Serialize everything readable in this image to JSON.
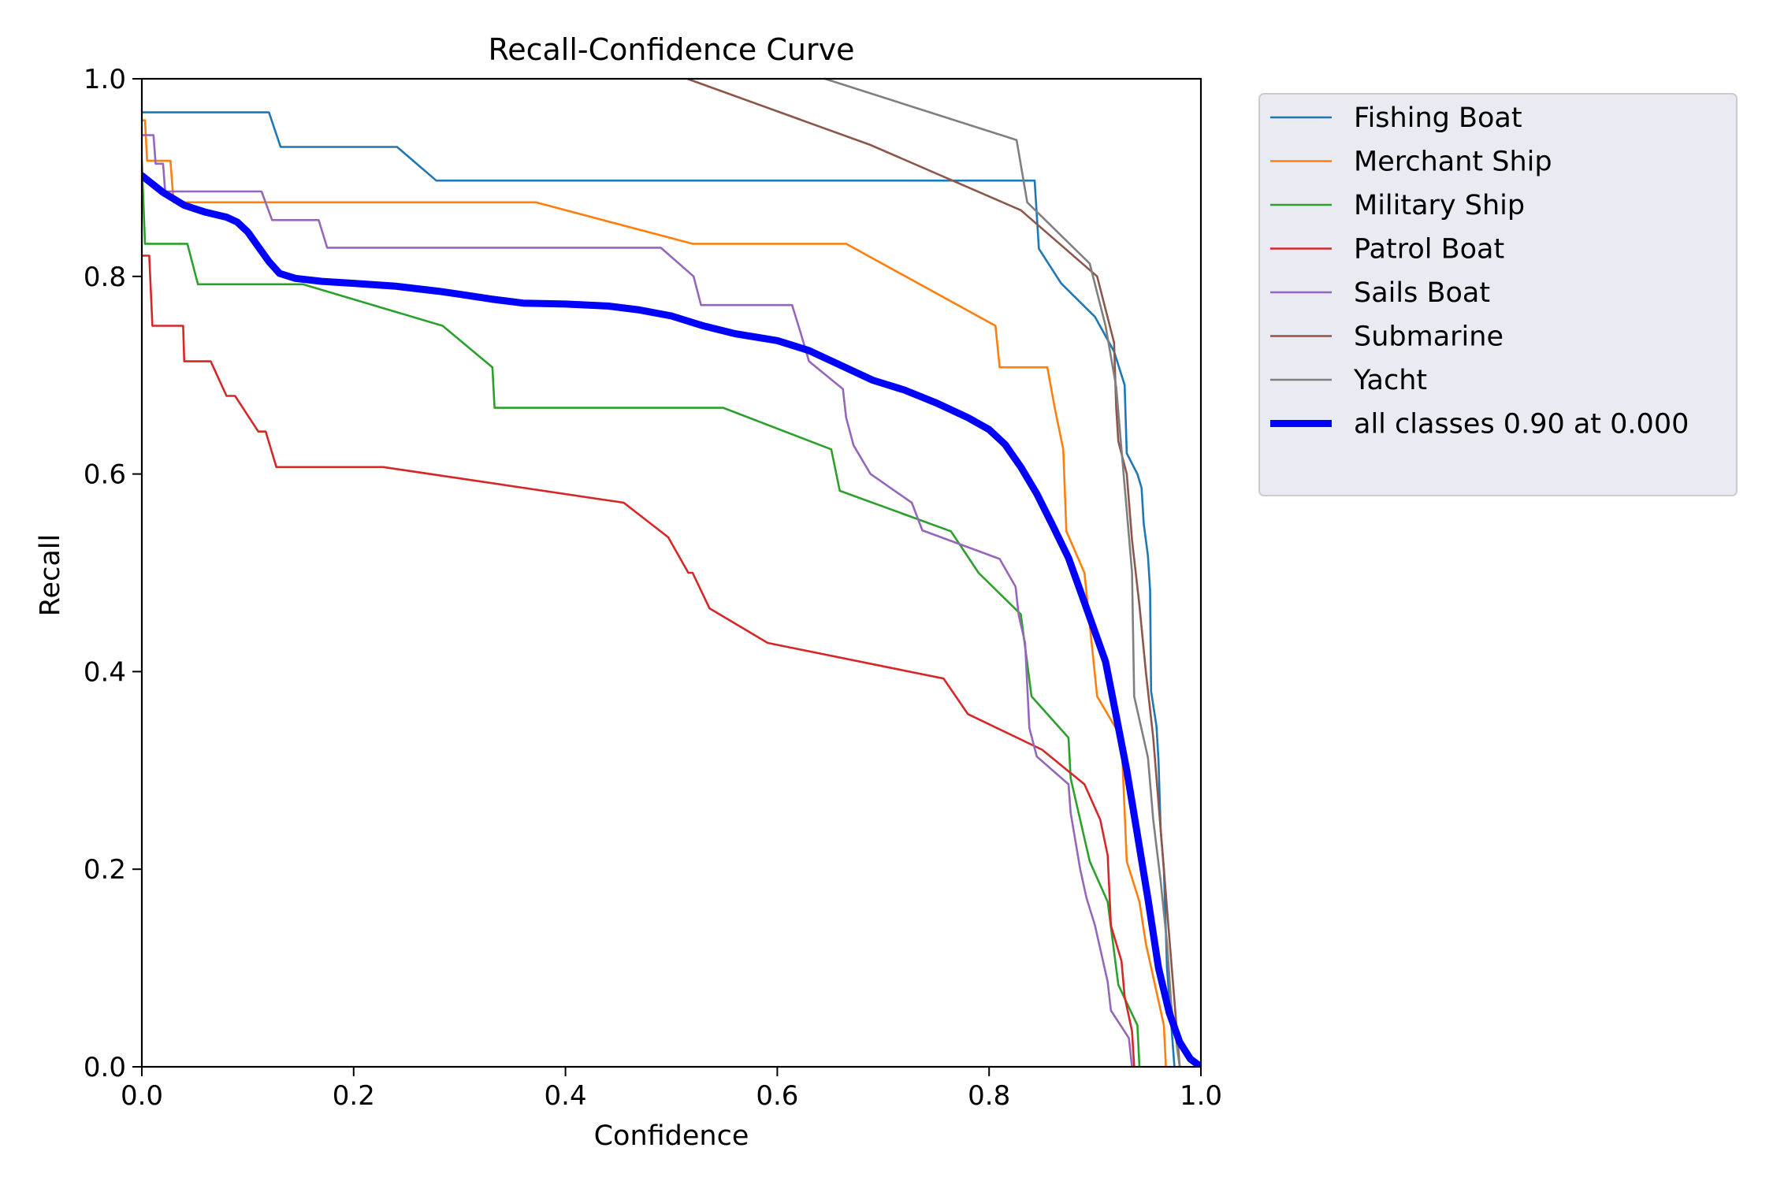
{
  "chart_data": {
    "type": "line",
    "title": "Recall-Confidence Curve",
    "xlabel": "Confidence",
    "ylabel": "Recall",
    "xlim": [
      0,
      1
    ],
    "ylim": [
      0,
      1
    ],
    "xticks": [
      "0.0",
      "0.2",
      "0.4",
      "0.6",
      "0.8",
      "1.0"
    ],
    "yticks": [
      "0.0",
      "0.2",
      "0.4",
      "0.6",
      "0.8",
      "1.0"
    ],
    "grid": false,
    "legend_position": "outside-top-right",
    "series": [
      {
        "name": "Fishing Boat",
        "color": "#1f77b4",
        "points": [
          [
            0,
            0.966
          ],
          [
            0.12,
            0.966
          ],
          [
            0.131,
            0.931
          ],
          [
            0.241,
            0.931
          ],
          [
            0.278,
            0.897
          ],
          [
            0.843,
            0.897
          ],
          [
            0.847,
            0.828
          ],
          [
            0.868,
            0.793
          ],
          [
            0.9,
            0.759
          ],
          [
            0.918,
            0.724
          ],
          [
            0.928,
            0.69
          ],
          [
            0.93,
            0.621
          ],
          [
            0.94,
            0.6
          ],
          [
            0.944,
            0.586
          ],
          [
            0.946,
            0.55
          ],
          [
            0.95,
            0.517
          ],
          [
            0.952,
            0.483
          ],
          [
            0.953,
            0.38
          ],
          [
            0.958,
            0.345
          ],
          [
            0.96,
            0.31
          ],
          [
            0.962,
            0.24
          ],
          [
            0.965,
            0.2
          ],
          [
            0.968,
            0.1
          ],
          [
            0.975,
            0.0
          ]
        ]
      },
      {
        "name": "Merchant Ship",
        "color": "#ff7f0e",
        "points": [
          [
            0,
            0.958
          ],
          [
            0.003,
            0.958
          ],
          [
            0.005,
            0.917
          ],
          [
            0.027,
            0.917
          ],
          [
            0.03,
            0.875
          ],
          [
            0.372,
            0.875
          ],
          [
            0.52,
            0.833
          ],
          [
            0.665,
            0.833
          ],
          [
            0.806,
            0.75
          ],
          [
            0.81,
            0.708
          ],
          [
            0.855,
            0.708
          ],
          [
            0.862,
            0.667
          ],
          [
            0.87,
            0.625
          ],
          [
            0.873,
            0.542
          ],
          [
            0.89,
            0.5
          ],
          [
            0.902,
            0.375
          ],
          [
            0.925,
            0.333
          ],
          [
            0.93,
            0.208
          ],
          [
            0.942,
            0.167
          ],
          [
            0.948,
            0.125
          ],
          [
            0.965,
            0.042
          ],
          [
            0.967,
            0.0
          ]
        ]
      },
      {
        "name": "Military Ship",
        "color": "#2ca02c",
        "points": [
          [
            0,
            0.917
          ],
          [
            0.003,
            0.833
          ],
          [
            0.043,
            0.833
          ],
          [
            0.053,
            0.792
          ],
          [
            0.152,
            0.792
          ],
          [
            0.284,
            0.75
          ],
          [
            0.331,
            0.708
          ],
          [
            0.333,
            0.667
          ],
          [
            0.549,
            0.667
          ],
          [
            0.651,
            0.625
          ],
          [
            0.659,
            0.583
          ],
          [
            0.764,
            0.542
          ],
          [
            0.79,
            0.5
          ],
          [
            0.83,
            0.458
          ],
          [
            0.835,
            0.417
          ],
          [
            0.84,
            0.375
          ],
          [
            0.875,
            0.333
          ],
          [
            0.877,
            0.292
          ],
          [
            0.895,
            0.208
          ],
          [
            0.912,
            0.167
          ],
          [
            0.922,
            0.083
          ],
          [
            0.94,
            0.042
          ],
          [
            0.942,
            0.0
          ]
        ]
      },
      {
        "name": "Patrol Boat",
        "color": "#d62728",
        "points": [
          [
            0,
            0.821
          ],
          [
            0.007,
            0.821
          ],
          [
            0.01,
            0.75
          ],
          [
            0.039,
            0.75
          ],
          [
            0.04,
            0.714
          ],
          [
            0.065,
            0.714
          ],
          [
            0.08,
            0.679
          ],
          [
            0.088,
            0.679
          ],
          [
            0.11,
            0.643
          ],
          [
            0.117,
            0.643
          ],
          [
            0.127,
            0.607
          ],
          [
            0.228,
            0.607
          ],
          [
            0.455,
            0.571
          ],
          [
            0.497,
            0.536
          ],
          [
            0.516,
            0.5
          ],
          [
            0.52,
            0.5
          ],
          [
            0.536,
            0.464
          ],
          [
            0.591,
            0.429
          ],
          [
            0.757,
            0.393
          ],
          [
            0.78,
            0.357
          ],
          [
            0.85,
            0.321
          ],
          [
            0.89,
            0.286
          ],
          [
            0.905,
            0.25
          ],
          [
            0.912,
            0.214
          ],
          [
            0.915,
            0.143
          ],
          [
            0.925,
            0.107
          ],
          [
            0.928,
            0.071
          ],
          [
            0.935,
            0.036
          ],
          [
            0.937,
            0.0
          ]
        ]
      },
      {
        "name": "Sails Boat",
        "color": "#9467bd",
        "points": [
          [
            0,
            0.943
          ],
          [
            0.011,
            0.943
          ],
          [
            0.013,
            0.914
          ],
          [
            0.02,
            0.914
          ],
          [
            0.022,
            0.886
          ],
          [
            0.113,
            0.886
          ],
          [
            0.123,
            0.857
          ],
          [
            0.167,
            0.857
          ],
          [
            0.175,
            0.829
          ],
          [
            0.49,
            0.829
          ],
          [
            0.521,
            0.8
          ],
          [
            0.528,
            0.771
          ],
          [
            0.614,
            0.771
          ],
          [
            0.622,
            0.743
          ],
          [
            0.63,
            0.714
          ],
          [
            0.662,
            0.686
          ],
          [
            0.665,
            0.657
          ],
          [
            0.672,
            0.629
          ],
          [
            0.688,
            0.6
          ],
          [
            0.727,
            0.571
          ],
          [
            0.737,
            0.543
          ],
          [
            0.81,
            0.514
          ],
          [
            0.825,
            0.486
          ],
          [
            0.828,
            0.457
          ],
          [
            0.834,
            0.429
          ],
          [
            0.838,
            0.343
          ],
          [
            0.845,
            0.314
          ],
          [
            0.875,
            0.286
          ],
          [
            0.877,
            0.257
          ],
          [
            0.886,
            0.2
          ],
          [
            0.892,
            0.171
          ],
          [
            0.9,
            0.143
          ],
          [
            0.912,
            0.086
          ],
          [
            0.915,
            0.057
          ],
          [
            0.932,
            0.029
          ],
          [
            0.935,
            0.0
          ]
        ]
      },
      {
        "name": "Submarine",
        "color": "#8c564b",
        "points": [
          [
            0.515,
            1.0
          ],
          [
            0.688,
            0.933
          ],
          [
            0.83,
            0.867
          ],
          [
            0.902,
            0.8
          ],
          [
            0.918,
            0.733
          ],
          [
            0.92,
            0.667
          ],
          [
            0.922,
            0.633
          ],
          [
            0.93,
            0.6
          ],
          [
            0.935,
            0.533
          ],
          [
            0.942,
            0.467
          ],
          [
            0.948,
            0.4
          ],
          [
            0.955,
            0.333
          ],
          [
            0.96,
            0.267
          ],
          [
            0.965,
            0.2
          ],
          [
            0.97,
            0.133
          ],
          [
            0.975,
            0.067
          ],
          [
            0.98,
            0.0
          ]
        ]
      },
      {
        "name": "Yacht",
        "color": "#7f7f7f",
        "points": [
          [
            0.645,
            1.0
          ],
          [
            0.826,
            0.938
          ],
          [
            0.836,
            0.875
          ],
          [
            0.895,
            0.813
          ],
          [
            0.91,
            0.75
          ],
          [
            0.92,
            0.688
          ],
          [
            0.925,
            0.625
          ],
          [
            0.93,
            0.563
          ],
          [
            0.935,
            0.5
          ],
          [
            0.937,
            0.375
          ],
          [
            0.95,
            0.313
          ],
          [
            0.955,
            0.25
          ],
          [
            0.962,
            0.188
          ],
          [
            0.968,
            0.125
          ],
          [
            0.972,
            0.063
          ],
          [
            0.98,
            0.0
          ]
        ]
      },
      {
        "name": "all classes 0.90 at 0.000",
        "color": "#0000ff",
        "bold": true,
        "points": [
          [
            0,
            0.902
          ],
          [
            0.02,
            0.885
          ],
          [
            0.04,
            0.872
          ],
          [
            0.06,
            0.865
          ],
          [
            0.08,
            0.86
          ],
          [
            0.09,
            0.855
          ],
          [
            0.1,
            0.845
          ],
          [
            0.11,
            0.83
          ],
          [
            0.12,
            0.815
          ],
          [
            0.13,
            0.803
          ],
          [
            0.145,
            0.798
          ],
          [
            0.17,
            0.795
          ],
          [
            0.2,
            0.793
          ],
          [
            0.24,
            0.79
          ],
          [
            0.28,
            0.785
          ],
          [
            0.3,
            0.782
          ],
          [
            0.33,
            0.777
          ],
          [
            0.36,
            0.773
          ],
          [
            0.4,
            0.772
          ],
          [
            0.44,
            0.77
          ],
          [
            0.47,
            0.766
          ],
          [
            0.5,
            0.76
          ],
          [
            0.53,
            0.75
          ],
          [
            0.56,
            0.742
          ],
          [
            0.6,
            0.735
          ],
          [
            0.63,
            0.725
          ],
          [
            0.66,
            0.71
          ],
          [
            0.69,
            0.695
          ],
          [
            0.72,
            0.685
          ],
          [
            0.75,
            0.672
          ],
          [
            0.78,
            0.657
          ],
          [
            0.8,
            0.645
          ],
          [
            0.815,
            0.63
          ],
          [
            0.83,
            0.607
          ],
          [
            0.845,
            0.58
          ],
          [
            0.86,
            0.548
          ],
          [
            0.875,
            0.515
          ],
          [
            0.89,
            0.47
          ],
          [
            0.9,
            0.44
          ],
          [
            0.91,
            0.41
          ],
          [
            0.92,
            0.355
          ],
          [
            0.93,
            0.3
          ],
          [
            0.94,
            0.235
          ],
          [
            0.95,
            0.17
          ],
          [
            0.96,
            0.1
          ],
          [
            0.97,
            0.055
          ],
          [
            0.98,
            0.025
          ],
          [
            0.99,
            0.008
          ],
          [
            1.0,
            0.0
          ]
        ]
      }
    ]
  }
}
